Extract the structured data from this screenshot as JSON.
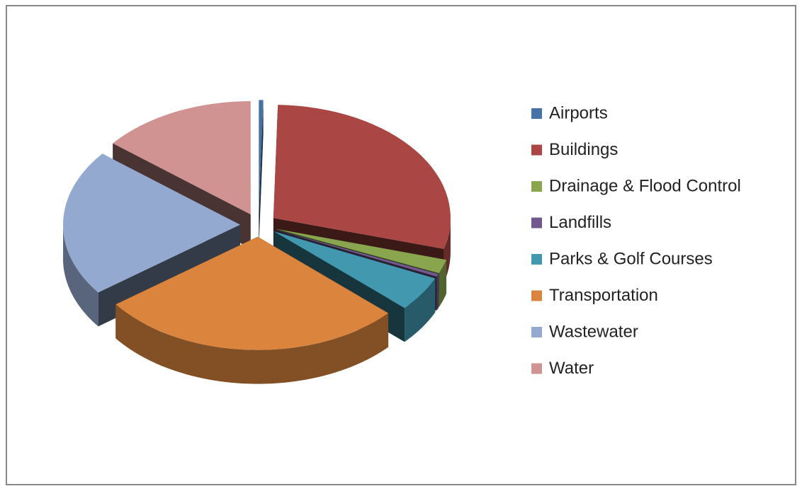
{
  "chart_data": {
    "type": "pie",
    "three_d": true,
    "exploded": true,
    "categories": [
      "Airports",
      "Buildings",
      "Drainage & Flood Control",
      "Landfills",
      "Parks & Golf Courses",
      "Transportation",
      "Wastewater",
      "Water"
    ],
    "values": [
      0.4,
      29,
      2,
      0.4,
      5,
      28,
      21,
      14.2
    ],
    "colors": [
      "#4572a7",
      "#aa4643",
      "#89a54e",
      "#71588f",
      "#4198af",
      "#db843d",
      "#93a9cf",
      "#d19392"
    ],
    "legend": "right"
  }
}
